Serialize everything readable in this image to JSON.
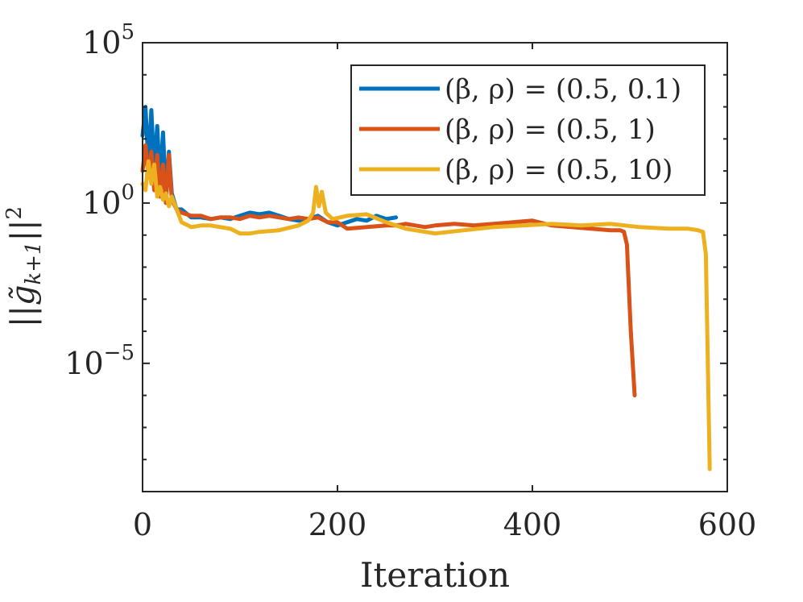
{
  "chart_data": {
    "type": "line",
    "title": "",
    "xlabel": "Iteration",
    "ylabel": "||g̃_{k+1}||^2",
    "xlim": [
      0,
      600
    ],
    "ylog": true,
    "ylim_exponent": [
      -9,
      5
    ],
    "x_ticks": [
      {
        "value": 0,
        "label": "0"
      },
      {
        "value": 200,
        "label": "200"
      },
      {
        "value": 400,
        "label": "400"
      },
      {
        "value": 600,
        "label": "600"
      }
    ],
    "y_ticks": [
      {
        "exp": 5,
        "base": "10",
        "sup": "5"
      },
      {
        "exp": 0,
        "base": "10",
        "sup": "0"
      },
      {
        "exp": -5,
        "base": "10",
        "sup": "−5"
      }
    ],
    "y_minor_exponents": [
      4,
      3,
      2,
      1,
      -1,
      -2,
      -3,
      -4,
      -6,
      -7,
      -8
    ],
    "legend": {
      "position": "top-right",
      "entries": [
        {
          "label_pre": "(β, ρ) = ",
          "label_val": "(0.5, 0.1)",
          "color": "#0072BD"
        },
        {
          "label_pre": "(β, ρ) = ",
          "label_val": "(0.5, 1)",
          "color": "#D95319"
        },
        {
          "label_pre": "(β, ρ) = ",
          "label_val": "(0.5, 10)",
          "color": "#EDB120"
        }
      ]
    },
    "series": [
      {
        "name": "(β, ρ) = (0.5, 0.1)",
        "color": "#0072BD",
        "x": [
          0,
          3,
          6,
          9,
          12,
          15,
          18,
          21,
          24,
          27,
          30,
          35,
          40,
          50,
          60,
          70,
          80,
          90,
          100,
          110,
          120,
          130,
          140,
          150,
          160,
          170,
          180,
          190,
          200,
          210,
          220,
          230,
          240,
          250,
          260
        ],
        "log10y": [
          2.1,
          3.0,
          1.2,
          2.9,
          1.0,
          2.4,
          0.6,
          2.2,
          0.2,
          1.6,
          0.3,
          -0.2,
          -0.2,
          -0.45,
          -0.45,
          -0.5,
          -0.45,
          -0.5,
          -0.4,
          -0.3,
          -0.35,
          -0.3,
          -0.4,
          -0.5,
          -0.55,
          -0.5,
          -0.4,
          -0.6,
          -0.7,
          -0.6,
          -0.5,
          -0.55,
          -0.4,
          -0.5,
          -0.45
        ]
      },
      {
        "name": "(β, ρ) = (0.5, 1)",
        "color": "#D95319",
        "x": [
          0,
          3,
          6,
          9,
          12,
          15,
          18,
          21,
          24,
          27,
          30,
          35,
          40,
          50,
          60,
          70,
          80,
          90,
          100,
          110,
          120,
          130,
          140,
          150,
          160,
          170,
          180,
          190,
          200,
          210,
          230,
          250,
          260,
          270,
          290,
          300,
          320,
          340,
          360,
          380,
          400,
          420,
          440,
          460,
          480,
          490,
          494,
          497,
          501,
          505
        ],
        "log10y": [
          1.0,
          1.8,
          0.8,
          1.6,
          0.4,
          1.5,
          0.2,
          1.2,
          0.0,
          1.5,
          0.1,
          -0.2,
          -0.3,
          -0.4,
          -0.4,
          -0.5,
          -0.45,
          -0.45,
          -0.5,
          -0.4,
          -0.45,
          -0.4,
          -0.45,
          -0.5,
          -0.45,
          -0.5,
          -0.45,
          -0.6,
          -0.6,
          -0.8,
          -0.75,
          -0.7,
          -0.7,
          -0.65,
          -0.75,
          -0.7,
          -0.65,
          -0.7,
          -0.65,
          -0.6,
          -0.55,
          -0.7,
          -0.75,
          -0.8,
          -0.85,
          -0.85,
          -0.9,
          -1.3,
          -4.0,
          -6.0
        ]
      },
      {
        "name": "(β, ρ) = (0.5, 10)",
        "color": "#EDB120",
        "x": [
          0,
          3,
          6,
          9,
          12,
          15,
          18,
          21,
          24,
          27,
          30,
          40,
          50,
          60,
          70,
          80,
          90,
          100,
          110,
          120,
          140,
          160,
          170,
          175,
          178,
          181,
          184,
          188,
          195,
          210,
          230,
          250,
          270,
          300,
          330,
          360,
          390,
          420,
          450,
          480,
          510,
          540,
          560,
          570,
          575,
          578,
          582
        ],
        "log10y": [
          0.6,
          0.4,
          1.3,
          0.6,
          1.2,
          0.2,
          0.5,
          0.1,
          0.3,
          -0.1,
          0.2,
          -0.6,
          -0.75,
          -0.7,
          -0.7,
          -0.75,
          -0.8,
          -0.95,
          -0.95,
          -0.9,
          -0.85,
          -0.7,
          -0.55,
          -0.3,
          0.5,
          -0.1,
          0.35,
          -0.3,
          -0.5,
          -0.4,
          -0.35,
          -0.6,
          -0.8,
          -0.95,
          -0.85,
          -0.75,
          -0.7,
          -0.65,
          -0.7,
          -0.65,
          -0.75,
          -0.8,
          -0.8,
          -0.85,
          -0.9,
          -1.6,
          -8.3
        ]
      }
    ]
  }
}
